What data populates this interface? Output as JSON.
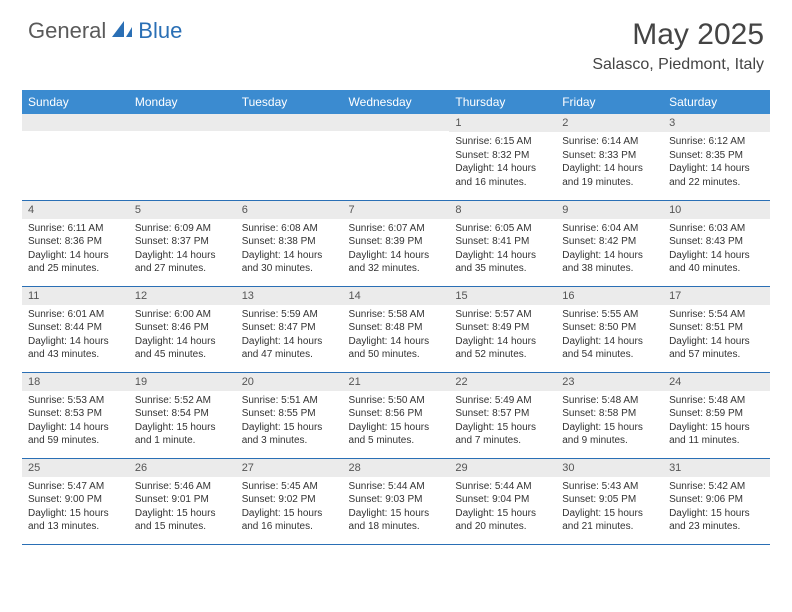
{
  "logo": {
    "general": "General",
    "blue": "Blue"
  },
  "title": "May 2025",
  "location": "Salasco, Piedmont, Italy",
  "colors": {
    "header_bg": "#3b8bd0",
    "header_text": "#ffffff",
    "rule": "#2a6fb5",
    "daynum_bg": "#ebebeb",
    "logo_gray": "#5a5a5a",
    "logo_blue": "#2a6fb5"
  },
  "day_headers": [
    "Sunday",
    "Monday",
    "Tuesday",
    "Wednesday",
    "Thursday",
    "Friday",
    "Saturday"
  ],
  "weeks": [
    [
      {
        "n": "",
        "sr": "",
        "ss": "",
        "dl": ""
      },
      {
        "n": "",
        "sr": "",
        "ss": "",
        "dl": ""
      },
      {
        "n": "",
        "sr": "",
        "ss": "",
        "dl": ""
      },
      {
        "n": "",
        "sr": "",
        "ss": "",
        "dl": ""
      },
      {
        "n": "1",
        "sr": "Sunrise: 6:15 AM",
        "ss": "Sunset: 8:32 PM",
        "dl": "Daylight: 14 hours and 16 minutes."
      },
      {
        "n": "2",
        "sr": "Sunrise: 6:14 AM",
        "ss": "Sunset: 8:33 PM",
        "dl": "Daylight: 14 hours and 19 minutes."
      },
      {
        "n": "3",
        "sr": "Sunrise: 6:12 AM",
        "ss": "Sunset: 8:35 PM",
        "dl": "Daylight: 14 hours and 22 minutes."
      }
    ],
    [
      {
        "n": "4",
        "sr": "Sunrise: 6:11 AM",
        "ss": "Sunset: 8:36 PM",
        "dl": "Daylight: 14 hours and 25 minutes."
      },
      {
        "n": "5",
        "sr": "Sunrise: 6:09 AM",
        "ss": "Sunset: 8:37 PM",
        "dl": "Daylight: 14 hours and 27 minutes."
      },
      {
        "n": "6",
        "sr": "Sunrise: 6:08 AM",
        "ss": "Sunset: 8:38 PM",
        "dl": "Daylight: 14 hours and 30 minutes."
      },
      {
        "n": "7",
        "sr": "Sunrise: 6:07 AM",
        "ss": "Sunset: 8:39 PM",
        "dl": "Daylight: 14 hours and 32 minutes."
      },
      {
        "n": "8",
        "sr": "Sunrise: 6:05 AM",
        "ss": "Sunset: 8:41 PM",
        "dl": "Daylight: 14 hours and 35 minutes."
      },
      {
        "n": "9",
        "sr": "Sunrise: 6:04 AM",
        "ss": "Sunset: 8:42 PM",
        "dl": "Daylight: 14 hours and 38 minutes."
      },
      {
        "n": "10",
        "sr": "Sunrise: 6:03 AM",
        "ss": "Sunset: 8:43 PM",
        "dl": "Daylight: 14 hours and 40 minutes."
      }
    ],
    [
      {
        "n": "11",
        "sr": "Sunrise: 6:01 AM",
        "ss": "Sunset: 8:44 PM",
        "dl": "Daylight: 14 hours and 43 minutes."
      },
      {
        "n": "12",
        "sr": "Sunrise: 6:00 AM",
        "ss": "Sunset: 8:46 PM",
        "dl": "Daylight: 14 hours and 45 minutes."
      },
      {
        "n": "13",
        "sr": "Sunrise: 5:59 AM",
        "ss": "Sunset: 8:47 PM",
        "dl": "Daylight: 14 hours and 47 minutes."
      },
      {
        "n": "14",
        "sr": "Sunrise: 5:58 AM",
        "ss": "Sunset: 8:48 PM",
        "dl": "Daylight: 14 hours and 50 minutes."
      },
      {
        "n": "15",
        "sr": "Sunrise: 5:57 AM",
        "ss": "Sunset: 8:49 PM",
        "dl": "Daylight: 14 hours and 52 minutes."
      },
      {
        "n": "16",
        "sr": "Sunrise: 5:55 AM",
        "ss": "Sunset: 8:50 PM",
        "dl": "Daylight: 14 hours and 54 minutes."
      },
      {
        "n": "17",
        "sr": "Sunrise: 5:54 AM",
        "ss": "Sunset: 8:51 PM",
        "dl": "Daylight: 14 hours and 57 minutes."
      }
    ],
    [
      {
        "n": "18",
        "sr": "Sunrise: 5:53 AM",
        "ss": "Sunset: 8:53 PM",
        "dl": "Daylight: 14 hours and 59 minutes."
      },
      {
        "n": "19",
        "sr": "Sunrise: 5:52 AM",
        "ss": "Sunset: 8:54 PM",
        "dl": "Daylight: 15 hours and 1 minute."
      },
      {
        "n": "20",
        "sr": "Sunrise: 5:51 AM",
        "ss": "Sunset: 8:55 PM",
        "dl": "Daylight: 15 hours and 3 minutes."
      },
      {
        "n": "21",
        "sr": "Sunrise: 5:50 AM",
        "ss": "Sunset: 8:56 PM",
        "dl": "Daylight: 15 hours and 5 minutes."
      },
      {
        "n": "22",
        "sr": "Sunrise: 5:49 AM",
        "ss": "Sunset: 8:57 PM",
        "dl": "Daylight: 15 hours and 7 minutes."
      },
      {
        "n": "23",
        "sr": "Sunrise: 5:48 AM",
        "ss": "Sunset: 8:58 PM",
        "dl": "Daylight: 15 hours and 9 minutes."
      },
      {
        "n": "24",
        "sr": "Sunrise: 5:48 AM",
        "ss": "Sunset: 8:59 PM",
        "dl": "Daylight: 15 hours and 11 minutes."
      }
    ],
    [
      {
        "n": "25",
        "sr": "Sunrise: 5:47 AM",
        "ss": "Sunset: 9:00 PM",
        "dl": "Daylight: 15 hours and 13 minutes."
      },
      {
        "n": "26",
        "sr": "Sunrise: 5:46 AM",
        "ss": "Sunset: 9:01 PM",
        "dl": "Daylight: 15 hours and 15 minutes."
      },
      {
        "n": "27",
        "sr": "Sunrise: 5:45 AM",
        "ss": "Sunset: 9:02 PM",
        "dl": "Daylight: 15 hours and 16 minutes."
      },
      {
        "n": "28",
        "sr": "Sunrise: 5:44 AM",
        "ss": "Sunset: 9:03 PM",
        "dl": "Daylight: 15 hours and 18 minutes."
      },
      {
        "n": "29",
        "sr": "Sunrise: 5:44 AM",
        "ss": "Sunset: 9:04 PM",
        "dl": "Daylight: 15 hours and 20 minutes."
      },
      {
        "n": "30",
        "sr": "Sunrise: 5:43 AM",
        "ss": "Sunset: 9:05 PM",
        "dl": "Daylight: 15 hours and 21 minutes."
      },
      {
        "n": "31",
        "sr": "Sunrise: 5:42 AM",
        "ss": "Sunset: 9:06 PM",
        "dl": "Daylight: 15 hours and 23 minutes."
      }
    ]
  ]
}
